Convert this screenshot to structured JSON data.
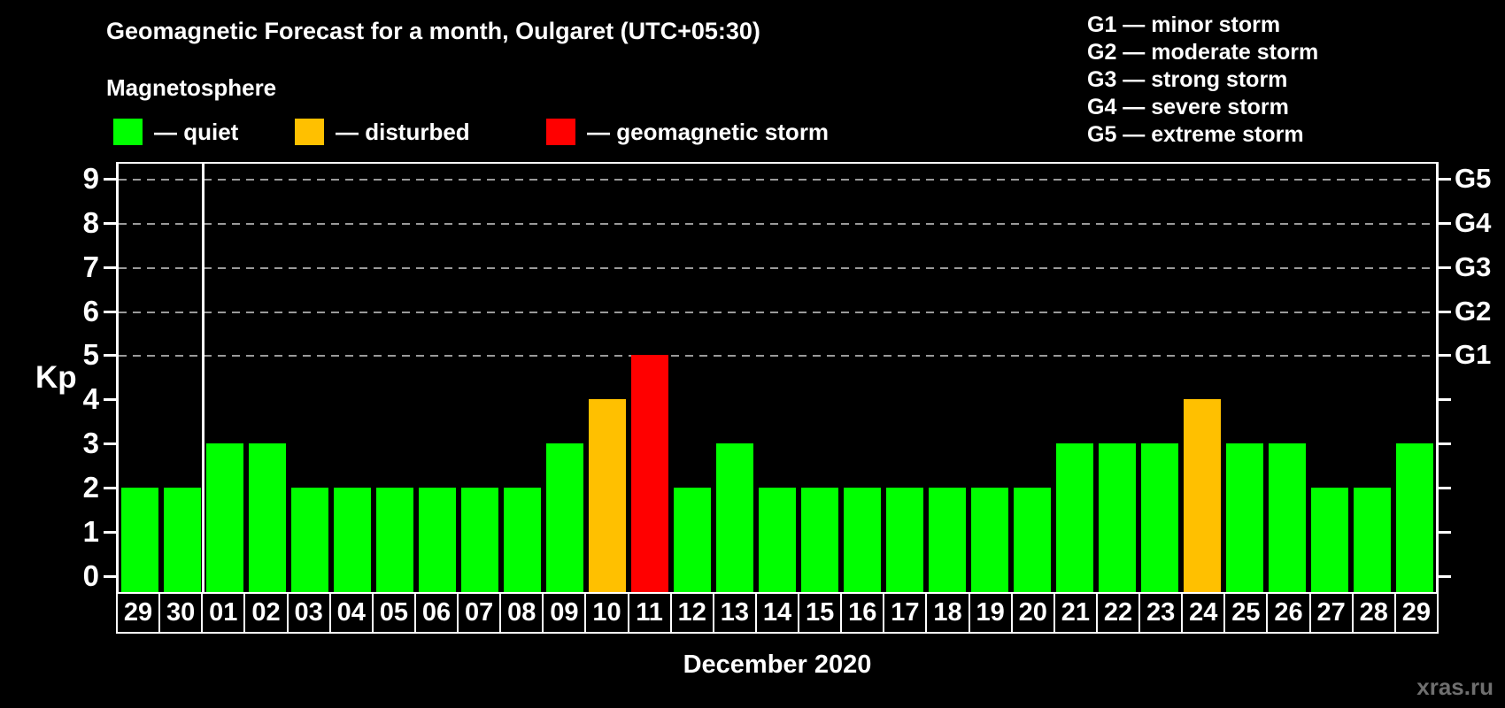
{
  "header": {
    "title": "Geomagnetic Forecast for a month, Oulgaret (UTC+05:30)",
    "subtitle": "Magnetosphere"
  },
  "legend": {
    "items": [
      {
        "key": "quiet",
        "label": "— quiet",
        "color": "#00ff00"
      },
      {
        "key": "disturbed",
        "label": "— disturbed",
        "color": "#ffc000"
      },
      {
        "key": "storm",
        "label": "— geomagnetic storm",
        "color": "#ff0000"
      }
    ]
  },
  "g_scale_legend": [
    "G1 — minor storm",
    "G2 — moderate storm",
    "G3 — strong storm",
    "G4 — severe storm",
    "G5 — extreme storm"
  ],
  "axes": {
    "y_label": "Kp",
    "y_ticks": [
      "0",
      "1",
      "2",
      "3",
      "4",
      "5",
      "6",
      "7",
      "8",
      "9"
    ],
    "right_axis_labels": [
      {
        "label": "G1",
        "kp": 5
      },
      {
        "label": "G2",
        "kp": 6
      },
      {
        "label": "G3",
        "kp": 7
      },
      {
        "label": "G4",
        "kp": 8
      },
      {
        "label": "G5",
        "kp": 9
      }
    ],
    "x_label": "December 2020"
  },
  "watermark": "xras.ru",
  "chart_data": {
    "type": "bar",
    "title": "Geomagnetic Forecast for a month, Oulgaret (UTC+05:30)",
    "xlabel": "December 2020",
    "ylabel": "Kp",
    "ylim": [
      0,
      9
    ],
    "y_ticks": [
      0,
      1,
      2,
      3,
      4,
      5,
      6,
      7,
      8,
      9
    ],
    "gridline_kp": [
      5,
      6,
      7,
      8,
      9
    ],
    "grid": "dashed horizontal lines at storm levels G1–G5 (Kp 5–9)",
    "legend_position": "top",
    "categories": [
      "29",
      "30",
      "01",
      "02",
      "03",
      "04",
      "05",
      "06",
      "07",
      "08",
      "09",
      "10",
      "11",
      "12",
      "13",
      "14",
      "15",
      "16",
      "17",
      "18",
      "19",
      "20",
      "21",
      "22",
      "23",
      "24",
      "25",
      "26",
      "27",
      "28",
      "29"
    ],
    "values": [
      2,
      2,
      3,
      3,
      2,
      2,
      2,
      2,
      2,
      2,
      3,
      4,
      5,
      2,
      3,
      2,
      2,
      2,
      2,
      2,
      2,
      2,
      3,
      3,
      3,
      4,
      3,
      3,
      2,
      2,
      3
    ],
    "status": [
      "quiet",
      "quiet",
      "quiet",
      "quiet",
      "quiet",
      "quiet",
      "quiet",
      "quiet",
      "quiet",
      "quiet",
      "quiet",
      "disturbed",
      "storm",
      "quiet",
      "quiet",
      "quiet",
      "quiet",
      "quiet",
      "quiet",
      "quiet",
      "quiet",
      "quiet",
      "quiet",
      "quiet",
      "quiet",
      "disturbed",
      "quiet",
      "quiet",
      "quiet",
      "quiet",
      "quiet"
    ],
    "colors": {
      "quiet": "#00ff00",
      "disturbed": "#ffc000",
      "storm": "#ff0000"
    },
    "prev_month_days": [
      "29",
      "30"
    ],
    "separator_after_index": 1,
    "right_axis": [
      {
        "label": "G1",
        "kp": 5
      },
      {
        "label": "G2",
        "kp": 6
      },
      {
        "label": "G3",
        "kp": 7
      },
      {
        "label": "G4",
        "kp": 8
      },
      {
        "label": "G5",
        "kp": 9
      }
    ]
  }
}
